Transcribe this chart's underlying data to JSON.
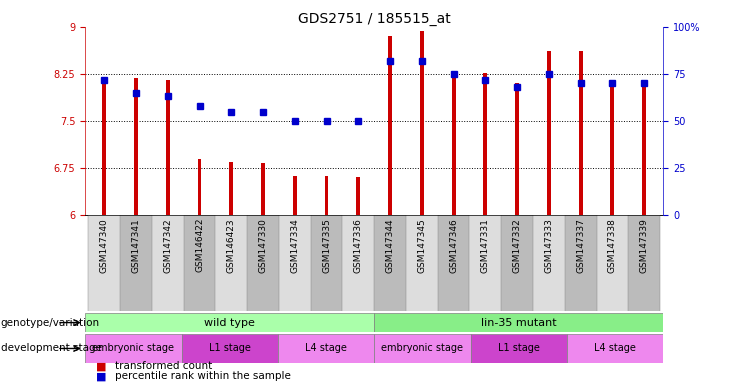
{
  "title": "GDS2751 / 185515_at",
  "samples": [
    "GSM147340",
    "GSM147341",
    "GSM147342",
    "GSM146422",
    "GSM146423",
    "GSM147330",
    "GSM147334",
    "GSM147335",
    "GSM147336",
    "GSM147344",
    "GSM147345",
    "GSM147346",
    "GSM147331",
    "GSM147332",
    "GSM147333",
    "GSM147337",
    "GSM147338",
    "GSM147339"
  ],
  "transformed_count": [
    8.2,
    8.18,
    8.16,
    6.9,
    6.85,
    6.83,
    6.63,
    6.62,
    6.61,
    8.85,
    8.93,
    8.27,
    8.27,
    8.1,
    8.62,
    8.62,
    8.15,
    8.15
  ],
  "percentile_rank": [
    72,
    65,
    63,
    58,
    55,
    55,
    50,
    50,
    50,
    82,
    82,
    75,
    72,
    68,
    75,
    70,
    70,
    70
  ],
  "ylim_left": [
    6,
    9
  ],
  "ylim_right": [
    0,
    100
  ],
  "yticks_left": [
    6,
    6.75,
    7.5,
    8.25,
    9
  ],
  "ytick_labels_left": [
    "6",
    "6.75",
    "7.5",
    "8.25",
    "9"
  ],
  "yticks_right": [
    0,
    25,
    50,
    75,
    100
  ],
  "ytick_labels_right": [
    "0",
    "25",
    "50",
    "75",
    "100%"
  ],
  "bar_color": "#cc0000",
  "dot_color": "#0000cc",
  "grid_lines": [
    6.75,
    7.5,
    8.25
  ],
  "bar_width": 0.12,
  "genotype_groups": [
    {
      "label": "wild type",
      "start": 0,
      "end": 9,
      "color": "#aaffaa"
    },
    {
      "label": "lin-35 mutant",
      "start": 9,
      "end": 18,
      "color": "#88ee88"
    }
  ],
  "dev_stage_groups": [
    {
      "label": "embryonic stage",
      "start": 0,
      "end": 3,
      "color": "#ee88ee"
    },
    {
      "label": "L1 stage",
      "start": 3,
      "end": 6,
      "color": "#cc44cc"
    },
    {
      "label": "L4 stage",
      "start": 6,
      "end": 9,
      "color": "#ee88ee"
    },
    {
      "label": "embryonic stage",
      "start": 9,
      "end": 12,
      "color": "#ee88ee"
    },
    {
      "label": "L1 stage",
      "start": 12,
      "end": 15,
      "color": "#cc44cc"
    },
    {
      "label": "L4 stage",
      "start": 15,
      "end": 18,
      "color": "#ee88ee"
    }
  ],
  "legend_items": [
    {
      "label": "transformed count",
      "color": "#cc0000"
    },
    {
      "label": "percentile rank within the sample",
      "color": "#0000cc"
    }
  ],
  "genotype_label": "genotype/variation",
  "devstage_label": "development stage",
  "background_color": "#ffffff",
  "cell_bg_light": "#dddddd",
  "cell_bg_dark": "#bbbbbb"
}
